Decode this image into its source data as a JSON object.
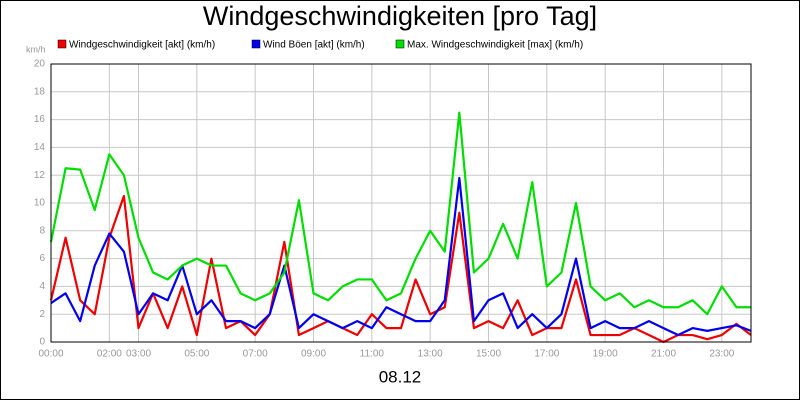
{
  "chart_data": {
    "type": "line",
    "title": "Windgeschwindigkeiten [pro Tag]",
    "ylabel": "km/h",
    "xlabel": "08.12",
    "x": [
      0,
      0.5,
      1,
      1.5,
      2,
      2.5,
      3,
      3.5,
      4,
      4.5,
      5,
      5.5,
      6,
      6.5,
      7,
      7.5,
      8,
      8.5,
      9,
      9.5,
      10,
      10.5,
      11,
      11.5,
      12,
      12.5,
      13,
      13.5,
      14,
      14.5,
      15,
      15.5,
      16,
      16.5,
      17,
      17.5,
      18,
      18.5,
      19,
      19.5,
      20,
      20.5,
      21,
      21.5,
      22,
      22.5,
      23,
      23.5,
      24
    ],
    "series": [
      {
        "name": "Windgeschwindigkeit [akt] (km/h)",
        "color": "#ee0000",
        "values": [
          3,
          7.5,
          3,
          2,
          7.5,
          10.5,
          1,
          3.5,
          1,
          4,
          0.5,
          6,
          1,
          1.5,
          0.5,
          2,
          7.2,
          0.5,
          1,
          1.5,
          1,
          0.5,
          2,
          1,
          1,
          4.5,
          2,
          2.5,
          9.3,
          1,
          1.5,
          1,
          3,
          0.5,
          1,
          1,
          4.5,
          0.5,
          0.5,
          0.5,
          1,
          0.5,
          0,
          0.5,
          0.5,
          0.2,
          0.5,
          1.3,
          0.5
        ]
      },
      {
        "name": "Wind Böen [akt] (km/h)",
        "color": "#0000ee",
        "values": [
          2.8,
          3.5,
          1.5,
          5.5,
          7.8,
          6.5,
          2,
          3.5,
          3,
          5.5,
          2,
          3,
          1.5,
          1.5,
          1,
          2,
          5.5,
          1,
          2,
          1.5,
          1,
          1.5,
          1,
          2.5,
          2,
          1.5,
          1.5,
          3,
          11.8,
          1.5,
          3,
          3.5,
          1,
          2,
          1,
          2,
          6,
          1,
          1.5,
          1,
          1,
          1.5,
          1,
          0.5,
          1,
          0.8,
          1,
          1.2,
          0.8
        ]
      },
      {
        "name": "Max. Windgeschwindigkeit [max] (km/h)",
        "color": "#00dd00",
        "values": [
          7.2,
          12.5,
          12.4,
          9.5,
          13.5,
          12,
          7.5,
          5,
          4.5,
          5.5,
          6,
          5.5,
          5.5,
          3.5,
          3,
          3.5,
          5,
          10.2,
          3.5,
          3,
          4,
          4.5,
          4.5,
          3,
          3.5,
          6,
          8,
          6.5,
          16.5,
          5,
          6,
          8.5,
          6,
          11.5,
          4,
          5,
          10,
          4,
          3,
          3.5,
          2.5,
          3,
          2.5,
          2.5,
          3,
          2,
          4,
          2.5,
          2.5
        ]
      }
    ],
    "xlim": [
      0,
      24
    ],
    "xticks": [
      {
        "value": 0,
        "label": "00:00"
      },
      {
        "value": 2,
        "label": "02:00"
      },
      {
        "value": 3,
        "label": "03:00"
      },
      {
        "value": 5,
        "label": "05:00"
      },
      {
        "value": 7,
        "label": "07:00"
      },
      {
        "value": 9,
        "label": "09:00"
      },
      {
        "value": 11,
        "label": "11:00"
      },
      {
        "value": 13,
        "label": "13:00"
      },
      {
        "value": 15,
        "label": "15:00"
      },
      {
        "value": 17,
        "label": "17:00"
      },
      {
        "value": 19,
        "label": "19:00"
      },
      {
        "value": 21,
        "label": "21:00"
      },
      {
        "value": 23,
        "label": "23:00"
      }
    ],
    "ylim": [
      0,
      20
    ],
    "yticks": [
      0,
      2,
      4,
      6,
      8,
      10,
      12,
      14,
      16,
      18,
      20
    ],
    "grid": true
  }
}
